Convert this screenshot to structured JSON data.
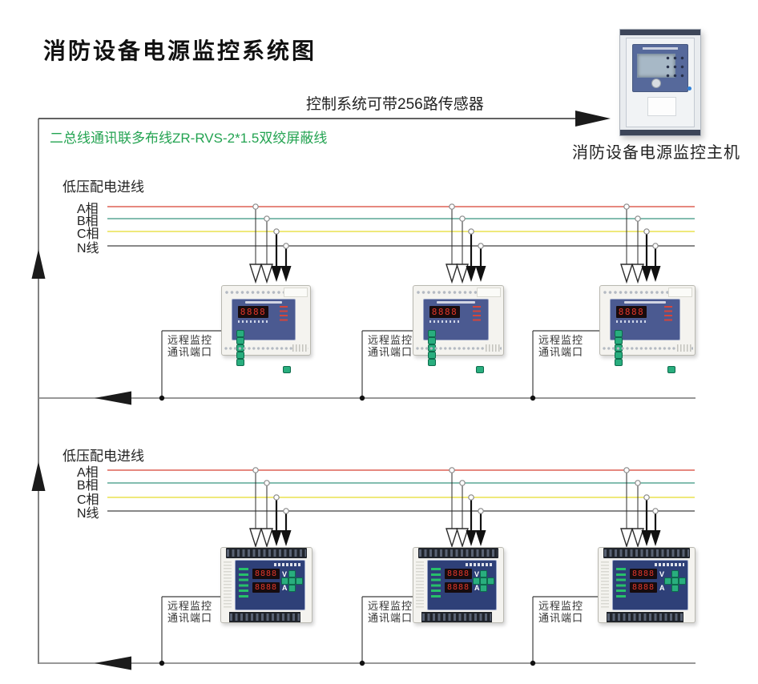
{
  "title": "消防设备电源监控系统图",
  "top": {
    "sensor_note": "控制系统可带256路传感器",
    "bus_note": "二总线通讯联多布线ZR-RVS-2*1.5双绞屏蔽线",
    "host_label": "消防设备电源监控主机"
  },
  "sections": [
    {
      "feeder_label": "低压配电进线",
      "phases": [
        "A相",
        "B相",
        "C相",
        "N线"
      ],
      "port_label": [
        "远程监控",
        "通讯端口"
      ]
    },
    {
      "feeder_label": "低压配电进线",
      "phases": [
        "A相",
        "B相",
        "C相",
        "N线"
      ],
      "port_label": [
        "远程监控",
        "通讯端口"
      ]
    }
  ],
  "device": {
    "display_digits": "8888",
    "volt_label": "V",
    "amp_label": "A"
  },
  "colors": {
    "phase_a": "#dd6055",
    "phase_b": "#5aa795",
    "phase_c": "#efe97b",
    "phase_n": "#606060",
    "wire": "#3f3f3f",
    "bus": "#8a8a8a",
    "arrow": "#1b1b1b",
    "note_green": "#23a351",
    "face1": "#4b5a91",
    "face2": "#2e4078",
    "seg_red": "#e2372a",
    "btn_green": "#29ae7e",
    "led_green": "#27c06a",
    "cab_strip": "#3d4659",
    "cab_led": "#2f80d8"
  }
}
